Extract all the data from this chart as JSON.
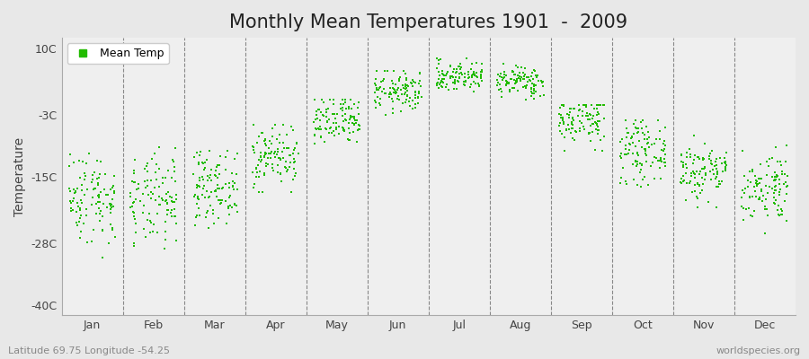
{
  "title": "Monthly Mean Temperatures 1901  -  2009",
  "ylabel": "Temperature",
  "xlabel": "",
  "yticks": [
    10,
    -3,
    -15,
    -28,
    -40
  ],
  "ytick_labels": [
    "10C",
    "-3C",
    "-15C",
    "-28C",
    "-40C"
  ],
  "ylim": [
    -42,
    12
  ],
  "xlim": [
    0.5,
    12.5
  ],
  "months": [
    "Jan",
    "Feb",
    "Mar",
    "Apr",
    "May",
    "Jun",
    "Jul",
    "Aug",
    "Sep",
    "Oct",
    "Nov",
    "Dec"
  ],
  "month_positions": [
    1,
    2,
    3,
    4,
    5,
    6,
    7,
    8,
    9,
    10,
    11,
    12
  ],
  "dot_color": "#22BB00",
  "background_color": "#E8E8E8",
  "plot_bg_color": "#EFEFEF",
  "grid_color": "#888888",
  "title_fontsize": 15,
  "label_fontsize": 10,
  "tick_fontsize": 9,
  "subtitle_left": "Latitude 69.75 Longitude -54.25",
  "subtitle_right": "worldspecies.org",
  "legend_label": "Mean Temp",
  "monthly_means": [
    -19,
    -20,
    -17,
    -11,
    -4.5,
    1.5,
    4.5,
    3.5,
    -4,
    -10,
    -14,
    -17
  ],
  "monthly_stds": [
    4.5,
    4.5,
    3.5,
    3.0,
    2.5,
    2.0,
    1.5,
    1.5,
    2.5,
    3.0,
    3.0,
    3.5
  ],
  "monthly_mins": [
    -31,
    -35,
    -30,
    -18,
    -10,
    -4,
    1,
    0,
    -10,
    -17,
    -21,
    -26
  ],
  "monthly_maxs": [
    -8,
    -9,
    -10,
    -5,
    0,
    5.5,
    8,
    7,
    -1,
    -4,
    -7,
    -9
  ],
  "n_years": 109,
  "random_seed": 42
}
